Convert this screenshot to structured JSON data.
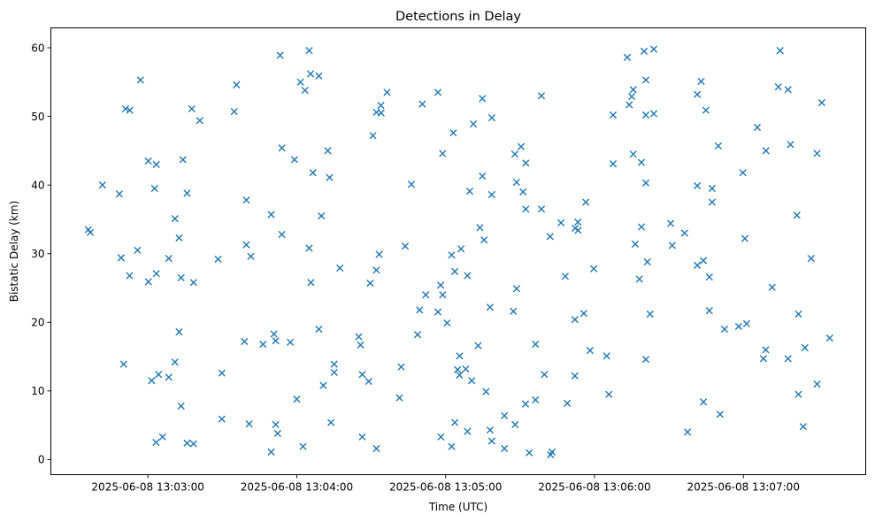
{
  "chart_data": {
    "type": "scatter",
    "title": "Detections in Delay",
    "xlabel": "Time (UTC)",
    "ylabel": "Bistatic Delay (km)",
    "marker": "x",
    "color": "#1f77b4",
    "grid": false,
    "legend": "none",
    "x_is_seconds_after": "13:00:00",
    "xlim": [
      140.9,
      469.3
    ],
    "ylim": [
      -2.2,
      62.9
    ],
    "xticks": [
      {
        "value": 180,
        "label": "2025-06-08 13:03:00"
      },
      {
        "value": 240,
        "label": "2025-06-08 13:04:00"
      },
      {
        "value": 300,
        "label": "2025-06-08 13:05:00"
      },
      {
        "value": 360,
        "label": "2025-06-08 13:06:00"
      },
      {
        "value": 420,
        "label": "2025-06-08 13:07:00"
      }
    ],
    "yticks": [
      {
        "value": 0,
        "label": "0"
      },
      {
        "value": 10,
        "label": "10"
      },
      {
        "value": 20,
        "label": "20"
      },
      {
        "value": 30,
        "label": "30"
      },
      {
        "value": 40,
        "label": "40"
      },
      {
        "value": 50,
        "label": "50"
      },
      {
        "value": 60,
        "label": "60"
      }
    ],
    "points": [
      [
        156.0,
        33.5
      ],
      [
        156.8,
        33.1
      ],
      [
        161.7,
        40.0
      ],
      [
        168.5,
        38.7
      ],
      [
        169.2,
        29.4
      ],
      [
        170.2,
        13.9
      ],
      [
        171.0,
        51.1
      ],
      [
        172.7,
        50.9
      ],
      [
        172.6,
        26.8
      ],
      [
        175.8,
        30.5
      ],
      [
        177.0,
        55.3
      ],
      [
        180.2,
        43.5
      ],
      [
        180.2,
        25.9
      ],
      [
        181.5,
        11.5
      ],
      [
        182.7,
        39.5
      ],
      [
        183.4,
        43.0
      ],
      [
        183.3,
        2.5
      ],
      [
        183.4,
        27.1
      ],
      [
        184.3,
        12.4
      ],
      [
        185.9,
        3.3
      ],
      [
        188.4,
        29.3
      ],
      [
        188.4,
        12.0
      ],
      [
        190.9,
        35.1
      ],
      [
        190.9,
        14.2
      ],
      [
        192.6,
        32.3
      ],
      [
        192.6,
        18.6
      ],
      [
        193.4,
        26.5
      ],
      [
        193.4,
        7.8
      ],
      [
        194.1,
        43.7
      ],
      [
        195.8,
        38.8
      ],
      [
        195.8,
        2.4
      ],
      [
        197.7,
        51.1
      ],
      [
        198.4,
        2.3
      ],
      [
        198.4,
        25.8
      ],
      [
        200.9,
        49.4
      ],
      [
        208.3,
        29.2
      ],
      [
        209.8,
        12.6
      ],
      [
        209.8,
        5.9
      ],
      [
        214.8,
        50.7
      ],
      [
        215.7,
        54.6
      ],
      [
        218.9,
        17.2
      ],
      [
        219.7,
        37.8
      ],
      [
        219.7,
        31.3
      ],
      [
        220.8,
        5.2
      ],
      [
        221.5,
        29.6
      ],
      [
        226.4,
        16.8
      ],
      [
        229.7,
        35.7
      ],
      [
        229.7,
        1.1
      ],
      [
        230.8,
        18.3
      ],
      [
        231.5,
        17.3
      ],
      [
        231.5,
        5.1
      ],
      [
        232.3,
        3.8
      ],
      [
        233.3,
        58.9
      ],
      [
        234.0,
        45.4
      ],
      [
        234.0,
        32.8
      ],
      [
        237.4,
        17.1
      ],
      [
        239.1,
        43.7
      ],
      [
        240.0,
        8.8
      ],
      [
        241.5,
        55.0
      ],
      [
        242.5,
        1.9
      ],
      [
        243.3,
        53.8
      ],
      [
        245.0,
        59.6
      ],
      [
        245.0,
        30.8
      ],
      [
        245.7,
        25.8
      ],
      [
        245.6,
        56.2
      ],
      [
        246.5,
        41.8
      ],
      [
        248.9,
        55.9
      ],
      [
        248.9,
        19.0
      ],
      [
        249.9,
        35.5
      ],
      [
        250.7,
        10.8
      ],
      [
        252.5,
        45.0
      ],
      [
        253.2,
        41.1
      ],
      [
        253.8,
        5.4
      ],
      [
        255.1,
        13.9
      ],
      [
        255.1,
        12.7
      ],
      [
        257.4,
        27.9
      ],
      [
        265.0,
        17.9
      ],
      [
        265.7,
        16.7
      ],
      [
        266.4,
        3.3
      ],
      [
        266.4,
        12.4
      ],
      [
        269.0,
        11.4
      ],
      [
        269.6,
        25.7
      ],
      [
        270.7,
        47.2
      ],
      [
        272.1,
        50.6
      ],
      [
        272.1,
        1.6
      ],
      [
        272.1,
        27.6
      ],
      [
        273.2,
        29.9
      ],
      [
        273.9,
        51.6
      ],
      [
        274.0,
        50.5
      ],
      [
        276.4,
        53.5
      ],
      [
        281.4,
        9.0
      ],
      [
        282.1,
        13.5
      ],
      [
        283.7,
        31.1
      ],
      [
        286.2,
        40.1
      ],
      [
        288.7,
        18.2
      ],
      [
        289.5,
        21.8
      ],
      [
        290.6,
        51.8
      ],
      [
        292.0,
        24.0
      ],
      [
        296.9,
        21.5
      ],
      [
        296.9,
        53.5
      ],
      [
        298.1,
        3.3
      ],
      [
        298.0,
        25.4
      ],
      [
        298.8,
        44.6
      ],
      [
        298.8,
        24.0
      ],
      [
        300.6,
        19.9
      ],
      [
        302.4,
        29.8
      ],
      [
        302.4,
        1.9
      ],
      [
        303.1,
        47.6
      ],
      [
        303.7,
        5.4
      ],
      [
        303.7,
        27.4
      ],
      [
        304.8,
        13.1
      ],
      [
        305.6,
        15.1
      ],
      [
        305.6,
        12.3
      ],
      [
        306.2,
        30.7
      ],
      [
        308.1,
        13.2
      ],
      [
        308.8,
        26.8
      ],
      [
        308.8,
        4.1
      ],
      [
        309.7,
        39.1
      ],
      [
        310.5,
        11.5
      ],
      [
        311.2,
        48.9
      ],
      [
        313.1,
        16.6
      ],
      [
        313.8,
        33.8
      ],
      [
        314.8,
        41.3
      ],
      [
        314.8,
        52.6
      ],
      [
        315.5,
        32.0
      ],
      [
        316.3,
        9.9
      ],
      [
        317.9,
        22.2
      ],
      [
        317.9,
        4.3
      ],
      [
        318.6,
        2.7
      ],
      [
        318.6,
        49.8
      ],
      [
        318.6,
        38.6
      ],
      [
        323.7,
        1.6
      ],
      [
        323.7,
        6.4
      ],
      [
        327.3,
        21.6
      ],
      [
        327.9,
        44.5
      ],
      [
        328.0,
        5.1
      ],
      [
        328.6,
        40.4
      ],
      [
        328.6,
        24.9
      ],
      [
        330.4,
        45.6
      ],
      [
        331.2,
        39.0
      ],
      [
        332.3,
        43.2
      ],
      [
        332.3,
        36.5
      ],
      [
        332.2,
        8.1
      ],
      [
        333.7,
        1.0
      ],
      [
        336.2,
        16.8
      ],
      [
        336.2,
        8.7
      ],
      [
        338.6,
        53.0
      ],
      [
        338.6,
        36.5
      ],
      [
        339.8,
        12.4
      ],
      [
        342.1,
        32.5
      ],
      [
        342.3,
        0.7
      ],
      [
        342.9,
        1.1
      ],
      [
        346.5,
        34.5
      ],
      [
        348.2,
        26.7
      ],
      [
        349.0,
        8.2
      ],
      [
        352.1,
        20.4
      ],
      [
        352.1,
        12.2
      ],
      [
        353.3,
        34.6
      ],
      [
        352.2,
        33.7
      ],
      [
        353.4,
        33.4
      ],
      [
        355.7,
        21.3
      ],
      [
        356.5,
        37.5
      ],
      [
        358.2,
        15.9
      ],
      [
        359.7,
        27.8
      ],
      [
        364.9,
        15.1
      ],
      [
        365.8,
        9.5
      ],
      [
        367.5,
        43.1
      ],
      [
        367.5,
        50.2
      ],
      [
        373.2,
        58.6
      ],
      [
        374.0,
        51.7
      ],
      [
        375.0,
        52.9
      ],
      [
        375.6,
        53.9
      ],
      [
        375.6,
        44.5
      ],
      [
        376.4,
        31.4
      ],
      [
        378.1,
        26.3
      ],
      [
        378.9,
        43.3
      ],
      [
        378.9,
        33.9
      ],
      [
        380.0,
        59.5
      ],
      [
        380.7,
        55.3
      ],
      [
        380.7,
        40.3
      ],
      [
        380.7,
        14.6
      ],
      [
        381.3,
        28.8
      ],
      [
        380.7,
        50.2
      ],
      [
        382.4,
        21.2
      ],
      [
        383.9,
        59.8
      ],
      [
        383.9,
        50.4
      ],
      [
        390.7,
        34.4
      ],
      [
        391.3,
        31.2
      ],
      [
        396.3,
        33.0
      ],
      [
        397.5,
        4.0
      ],
      [
        401.4,
        53.2
      ],
      [
        401.4,
        39.9
      ],
      [
        401.4,
        28.3
      ],
      [
        403.0,
        55.1
      ],
      [
        403.9,
        29.0
      ],
      [
        403.9,
        8.4
      ],
      [
        404.9,
        50.9
      ],
      [
        406.3,
        26.6
      ],
      [
        406.3,
        21.7
      ],
      [
        407.4,
        39.5
      ],
      [
        407.4,
        37.5
      ],
      [
        409.9,
        45.7
      ],
      [
        410.6,
        6.6
      ],
      [
        412.4,
        19.0
      ],
      [
        418.1,
        19.4
      ],
      [
        419.8,
        41.8
      ],
      [
        420.6,
        32.2
      ],
      [
        421.3,
        19.8
      ],
      [
        425.6,
        48.4
      ],
      [
        428.1,
        14.7
      ],
      [
        429.0,
        16.0
      ],
      [
        429.1,
        45.0
      ],
      [
        431.6,
        25.1
      ],
      [
        434.1,
        54.3
      ],
      [
        434.8,
        59.6
      ],
      [
        438.0,
        53.9
      ],
      [
        438.0,
        14.7
      ],
      [
        439.0,
        45.9
      ],
      [
        441.6,
        35.6
      ],
      [
        442.2,
        21.2
      ],
      [
        442.2,
        9.5
      ],
      [
        444.1,
        4.8
      ],
      [
        444.8,
        16.3
      ],
      [
        447.3,
        29.3
      ],
      [
        449.7,
        11.0
      ],
      [
        449.7,
        44.6
      ],
      [
        451.6,
        52.0
      ],
      [
        454.8,
        17.7
      ]
    ]
  }
}
